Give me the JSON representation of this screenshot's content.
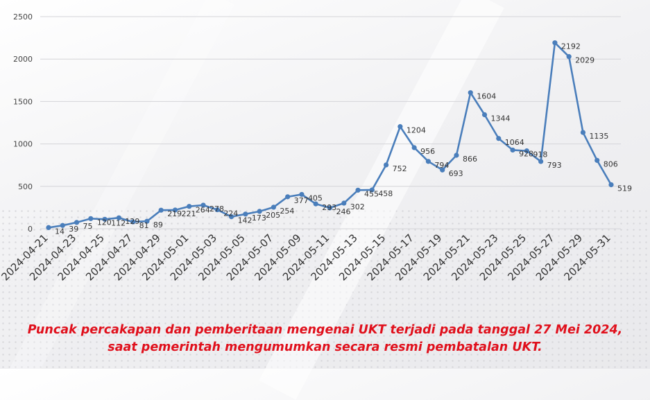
{
  "chart_data": {
    "type": "line",
    "title": "",
    "xlabel": "",
    "ylabel": "",
    "ylim": [
      0,
      2500
    ],
    "yticks": [
      0,
      500,
      1000,
      1500,
      2000,
      2500
    ],
    "grid": "horizontal",
    "x": [
      "2024-04-21",
      "2024-04-22",
      "2024-04-23",
      "2024-04-24",
      "2024-04-25",
      "2024-04-26",
      "2024-04-27",
      "2024-04-28",
      "2024-04-29",
      "2024-04-30",
      "2024-05-01",
      "2024-05-02",
      "2024-05-03",
      "2024-05-04",
      "2024-05-05",
      "2024-05-06",
      "2024-05-07",
      "2024-05-08",
      "2024-05-09",
      "2024-05-10",
      "2024-05-11",
      "2024-05-12",
      "2024-05-13",
      "2024-05-14",
      "2024-05-15",
      "2024-05-16",
      "2024-05-17",
      "2024-05-18",
      "2024-05-19",
      "2024-05-20",
      "2024-05-21",
      "2024-05-22",
      "2024-05-23",
      "2024-05-24",
      "2024-05-25",
      "2024-05-26",
      "2024-05-27",
      "2024-05-28",
      "2024-05-29",
      "2024-05-30",
      "2024-05-31"
    ],
    "x_tick_labels": [
      "2024-04-21",
      "2024-04-23",
      "2024-04-25",
      "2024-04-27",
      "2024-04-29",
      "2024-05-01",
      "2024-05-03",
      "2024-05-05",
      "2024-05-07",
      "2024-05-09",
      "2024-05-11",
      "2024-05-13",
      "2024-05-15",
      "2024-05-17",
      "2024-05-19",
      "2024-05-21",
      "2024-05-23",
      "2024-05-25",
      "2024-05-27",
      "2024-05-29",
      "2024-05-31"
    ],
    "series": [
      {
        "color": "#4a7ebb",
        "values": [
          14,
          39,
          75,
          120,
          112,
          129,
          81,
          89,
          219,
          221,
          264,
          278,
          224,
          142,
          173,
          205,
          254,
          377,
          405,
          293,
          246,
          302,
          455,
          458,
          752,
          1204,
          956,
          794,
          693,
          866,
          1604,
          1344,
          1064,
          928,
          918,
          793,
          2192,
          2029,
          1135,
          806,
          519
        ]
      }
    ]
  },
  "caption": {
    "line1": "Puncak percakapan dan pemberitaan mengenai UKT  terjadi pada tanggal 27 Mei 2024,",
    "line2": "saat pemerintah mengumumkan secara resmi pembatalan UKT."
  }
}
